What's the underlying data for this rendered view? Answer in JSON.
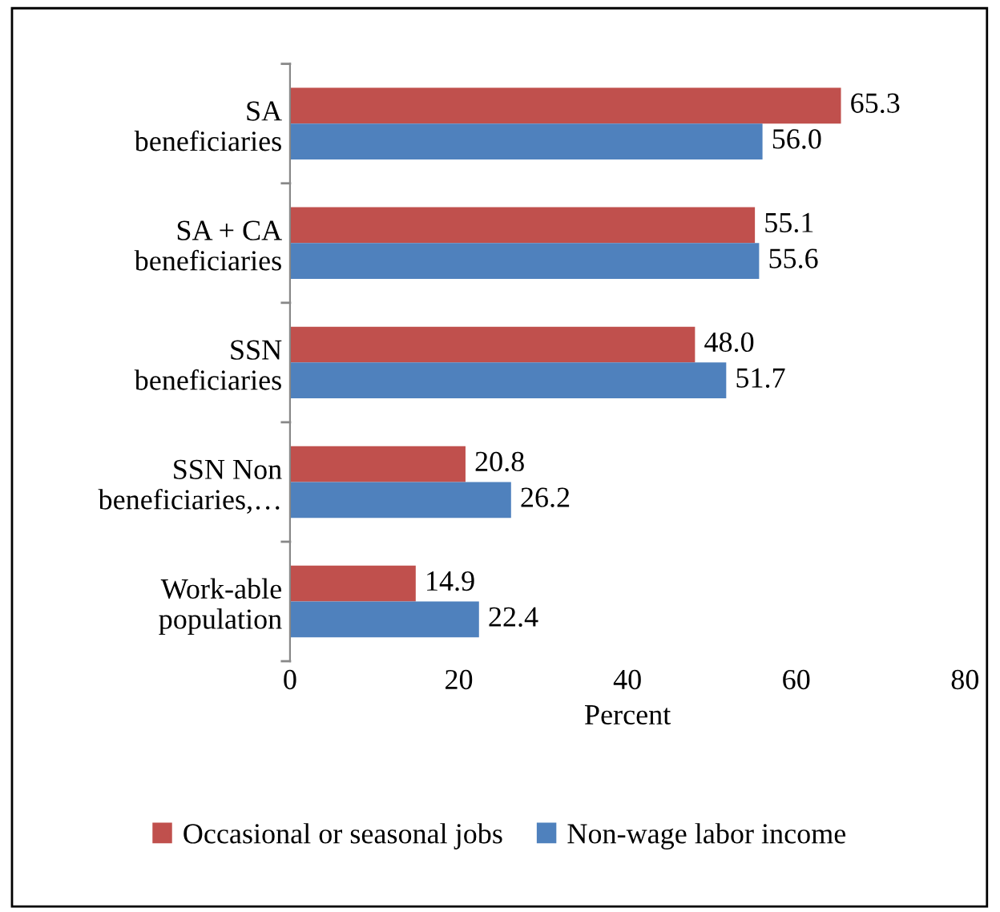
{
  "chart_data": {
    "type": "bar",
    "orientation": "horizontal",
    "categories": [
      "SA\nbeneficiaries",
      "SA + CA\nbeneficiaries",
      "SSN\nbeneficiaries",
      "SSN Non\nbeneficiaries,…",
      "Work-able\npopulation"
    ],
    "series": [
      {
        "name": "Occasional or seasonal jobs",
        "color": "#c0504d",
        "values": [
          65.3,
          55.1,
          48.0,
          20.8,
          14.9
        ],
        "value_labels": [
          "65.3",
          "55.1",
          "48.0",
          "20.8",
          "14.9"
        ]
      },
      {
        "name": "Non-wage labor income",
        "color": "#4f81bd",
        "values": [
          56.0,
          55.6,
          51.7,
          26.2,
          22.4
        ],
        "value_labels": [
          "56.0",
          "55.6",
          "51.7",
          "26.2",
          "22.4"
        ]
      }
    ],
    "xlabel": "Percent",
    "xlim": [
      0,
      80
    ],
    "xticks": [
      0,
      20,
      40,
      60,
      80
    ],
    "legend": "bottom",
    "grid": false
  }
}
